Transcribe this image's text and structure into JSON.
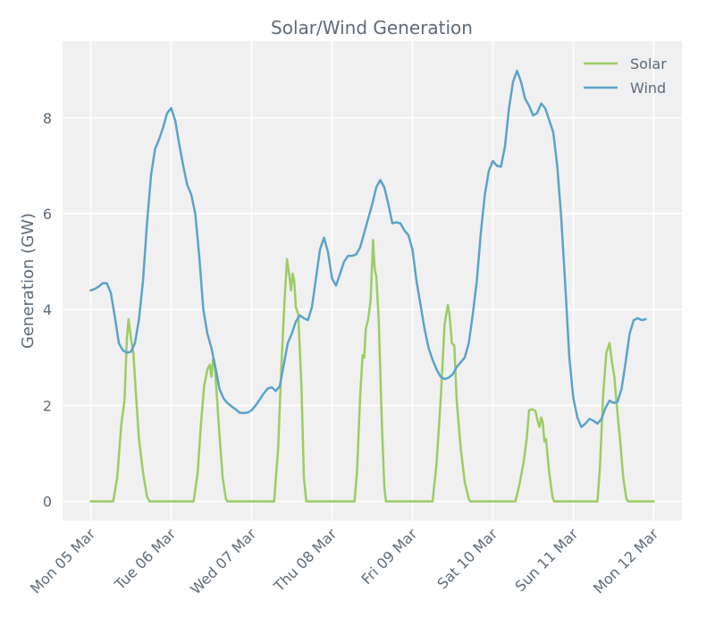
{
  "chart_data": {
    "type": "line",
    "title": "Solar/Wind Generation",
    "xlabel": "",
    "ylabel": "Generation (GW)",
    "ylim": [
      -0.4,
      9.6
    ],
    "xlim": [
      -0.35,
      7.35
    ],
    "yticks": [
      0,
      2,
      4,
      6,
      8
    ],
    "xticks": [
      {
        "pos": 0,
        "label": "Mon 05 Mar"
      },
      {
        "pos": 1,
        "label": "Tue 06 Mar"
      },
      {
        "pos": 2,
        "label": "Wed 07 Mar"
      },
      {
        "pos": 3,
        "label": "Thu 08 Mar"
      },
      {
        "pos": 4,
        "label": "Fri 09 Mar"
      },
      {
        "pos": 5,
        "label": "Sat 10 Mar"
      },
      {
        "pos": 6,
        "label": "Sun 11 Mar"
      },
      {
        "pos": 7,
        "label": "Mon 12 Mar"
      }
    ],
    "grid": true,
    "legend_position": "top-right",
    "series": [
      {
        "name": "Solar",
        "color": "#9ccc65",
        "points": [
          [
            0.0,
            0
          ],
          [
            0.28,
            0
          ],
          [
            0.33,
            0.5
          ],
          [
            0.38,
            1.6
          ],
          [
            0.42,
            2.1
          ],
          [
            0.45,
            3.4
          ],
          [
            0.47,
            3.8
          ],
          [
            0.5,
            3.4
          ],
          [
            0.53,
            3.1
          ],
          [
            0.56,
            2.3
          ],
          [
            0.6,
            1.3
          ],
          [
            0.65,
            0.6
          ],
          [
            0.7,
            0.1
          ],
          [
            0.73,
            0
          ],
          [
            1.28,
            0
          ],
          [
            1.33,
            0.6
          ],
          [
            1.37,
            1.6
          ],
          [
            1.41,
            2.4
          ],
          [
            1.45,
            2.75
          ],
          [
            1.48,
            2.85
          ],
          [
            1.5,
            2.6
          ],
          [
            1.52,
            2.95
          ],
          [
            1.54,
            2.85
          ],
          [
            1.56,
            2.4
          ],
          [
            1.6,
            1.4
          ],
          [
            1.64,
            0.5
          ],
          [
            1.68,
            0.05
          ],
          [
            1.7,
            0
          ],
          [
            2.28,
            0
          ],
          [
            2.33,
            1.1
          ],
          [
            2.37,
            2.8
          ],
          [
            2.41,
            4.2
          ],
          [
            2.44,
            5.05
          ],
          [
            2.47,
            4.7
          ],
          [
            2.49,
            4.4
          ],
          [
            2.51,
            4.75
          ],
          [
            2.53,
            4.6
          ],
          [
            2.55,
            4.05
          ],
          [
            2.58,
            3.9
          ],
          [
            2.62,
            2.4
          ],
          [
            2.65,
            0.5
          ],
          [
            2.68,
            0
          ],
          [
            3.28,
            0
          ],
          [
            3.31,
            0.6
          ],
          [
            3.35,
            2.2
          ],
          [
            3.38,
            3.05
          ],
          [
            3.4,
            3.0
          ],
          [
            3.42,
            3.6
          ],
          [
            3.45,
            3.8
          ],
          [
            3.48,
            4.2
          ],
          [
            3.51,
            5.45
          ],
          [
            3.53,
            4.85
          ],
          [
            3.55,
            4.7
          ],
          [
            3.58,
            3.8
          ],
          [
            3.62,
            1.6
          ],
          [
            3.65,
            0.3
          ],
          [
            3.67,
            0
          ],
          [
            4.25,
            0
          ],
          [
            4.3,
            0.8
          ],
          [
            4.35,
            2.1
          ],
          [
            4.4,
            3.7
          ],
          [
            4.44,
            4.1
          ],
          [
            4.46,
            3.9
          ],
          [
            4.49,
            3.3
          ],
          [
            4.52,
            3.25
          ],
          [
            4.55,
            2.1
          ],
          [
            4.6,
            1.1
          ],
          [
            4.65,
            0.4
          ],
          [
            4.7,
            0.05
          ],
          [
            4.72,
            0
          ],
          [
            5.28,
            0
          ],
          [
            5.33,
            0.35
          ],
          [
            5.38,
            0.8
          ],
          [
            5.42,
            1.3
          ],
          [
            5.45,
            1.9
          ],
          [
            5.49,
            1.92
          ],
          [
            5.53,
            1.88
          ],
          [
            5.56,
            1.65
          ],
          [
            5.58,
            1.55
          ],
          [
            5.6,
            1.75
          ],
          [
            5.62,
            1.65
          ],
          [
            5.64,
            1.25
          ],
          [
            5.66,
            1.3
          ],
          [
            5.7,
            0.6
          ],
          [
            5.74,
            0.1
          ],
          [
            5.76,
            0
          ],
          [
            6.3,
            0
          ],
          [
            6.33,
            0.7
          ],
          [
            6.37,
            2.2
          ],
          [
            6.41,
            3.1
          ],
          [
            6.45,
            3.3
          ],
          [
            6.48,
            2.9
          ],
          [
            6.51,
            2.6
          ],
          [
            6.54,
            2.0
          ],
          [
            6.58,
            1.3
          ],
          [
            6.62,
            0.5
          ],
          [
            6.66,
            0.05
          ],
          [
            6.68,
            0
          ],
          [
            7.0,
            0
          ]
        ]
      },
      {
        "name": "Wind",
        "color": "#5ba3c9",
        "points": [
          [
            0.0,
            4.4
          ],
          [
            0.05,
            4.43
          ],
          [
            0.1,
            4.48
          ],
          [
            0.15,
            4.55
          ],
          [
            0.2,
            4.55
          ],
          [
            0.25,
            4.35
          ],
          [
            0.3,
            3.85
          ],
          [
            0.35,
            3.3
          ],
          [
            0.4,
            3.15
          ],
          [
            0.45,
            3.1
          ],
          [
            0.5,
            3.12
          ],
          [
            0.55,
            3.3
          ],
          [
            0.6,
            3.8
          ],
          [
            0.65,
            4.6
          ],
          [
            0.7,
            5.8
          ],
          [
            0.75,
            6.8
          ],
          [
            0.8,
            7.35
          ],
          [
            0.85,
            7.55
          ],
          [
            0.9,
            7.8
          ],
          [
            0.95,
            8.1
          ],
          [
            1.0,
            8.2
          ],
          [
            1.05,
            7.95
          ],
          [
            1.1,
            7.45
          ],
          [
            1.15,
            7.0
          ],
          [
            1.2,
            6.6
          ],
          [
            1.25,
            6.4
          ],
          [
            1.3,
            6.0
          ],
          [
            1.35,
            5.1
          ],
          [
            1.4,
            4.0
          ],
          [
            1.45,
            3.5
          ],
          [
            1.5,
            3.2
          ],
          [
            1.55,
            2.8
          ],
          [
            1.6,
            2.35
          ],
          [
            1.65,
            2.15
          ],
          [
            1.7,
            2.05
          ],
          [
            1.75,
            1.98
          ],
          [
            1.8,
            1.92
          ],
          [
            1.85,
            1.85
          ],
          [
            1.9,
            1.84
          ],
          [
            1.95,
            1.85
          ],
          [
            2.0,
            1.9
          ],
          [
            2.05,
            2.0
          ],
          [
            2.1,
            2.12
          ],
          [
            2.15,
            2.25
          ],
          [
            2.2,
            2.35
          ],
          [
            2.25,
            2.38
          ],
          [
            2.3,
            2.3
          ],
          [
            2.35,
            2.4
          ],
          [
            2.4,
            2.85
          ],
          [
            2.45,
            3.3
          ],
          [
            2.5,
            3.5
          ],
          [
            2.55,
            3.75
          ],
          [
            2.6,
            3.88
          ],
          [
            2.65,
            3.82
          ],
          [
            2.7,
            3.78
          ],
          [
            2.75,
            4.05
          ],
          [
            2.8,
            4.65
          ],
          [
            2.85,
            5.25
          ],
          [
            2.9,
            5.5
          ],
          [
            2.95,
            5.2
          ],
          [
            3.0,
            4.65
          ],
          [
            3.05,
            4.5
          ],
          [
            3.1,
            4.75
          ],
          [
            3.15,
            5.0
          ],
          [
            3.2,
            5.12
          ],
          [
            3.25,
            5.12
          ],
          [
            3.3,
            5.15
          ],
          [
            3.35,
            5.3
          ],
          [
            3.4,
            5.6
          ],
          [
            3.45,
            5.9
          ],
          [
            3.5,
            6.2
          ],
          [
            3.55,
            6.55
          ],
          [
            3.6,
            6.7
          ],
          [
            3.65,
            6.55
          ],
          [
            3.7,
            6.2
          ],
          [
            3.75,
            5.8
          ],
          [
            3.8,
            5.82
          ],
          [
            3.85,
            5.8
          ],
          [
            3.9,
            5.65
          ],
          [
            3.95,
            5.55
          ],
          [
            4.0,
            5.25
          ],
          [
            4.05,
            4.6
          ],
          [
            4.1,
            4.1
          ],
          [
            4.15,
            3.6
          ],
          [
            4.2,
            3.2
          ],
          [
            4.25,
            2.95
          ],
          [
            4.3,
            2.75
          ],
          [
            4.35,
            2.6
          ],
          [
            4.4,
            2.55
          ],
          [
            4.45,
            2.58
          ],
          [
            4.5,
            2.65
          ],
          [
            4.55,
            2.8
          ],
          [
            4.6,
            2.9
          ],
          [
            4.65,
            3.0
          ],
          [
            4.7,
            3.3
          ],
          [
            4.75,
            3.9
          ],
          [
            4.8,
            4.6
          ],
          [
            4.85,
            5.6
          ],
          [
            4.9,
            6.4
          ],
          [
            4.95,
            6.9
          ],
          [
            5.0,
            7.1
          ],
          [
            5.05,
            7.0
          ],
          [
            5.1,
            6.98
          ],
          [
            5.15,
            7.4
          ],
          [
            5.2,
            8.2
          ],
          [
            5.25,
            8.75
          ],
          [
            5.3,
            8.98
          ],
          [
            5.35,
            8.75
          ],
          [
            5.4,
            8.4
          ],
          [
            5.45,
            8.25
          ],
          [
            5.5,
            8.05
          ],
          [
            5.55,
            8.1
          ],
          [
            5.6,
            8.3
          ],
          [
            5.65,
            8.2
          ],
          [
            5.7,
            7.95
          ],
          [
            5.75,
            7.7
          ],
          [
            5.8,
            7.0
          ],
          [
            5.85,
            5.9
          ],
          [
            5.9,
            4.5
          ],
          [
            5.95,
            3.0
          ],
          [
            6.0,
            2.15
          ],
          [
            6.05,
            1.75
          ],
          [
            6.1,
            1.55
          ],
          [
            6.15,
            1.62
          ],
          [
            6.2,
            1.72
          ],
          [
            6.25,
            1.68
          ],
          [
            6.3,
            1.62
          ],
          [
            6.35,
            1.72
          ],
          [
            6.4,
            1.95
          ],
          [
            6.45,
            2.1
          ],
          [
            6.5,
            2.05
          ],
          [
            6.55,
            2.08
          ],
          [
            6.6,
            2.35
          ],
          [
            6.65,
            2.9
          ],
          [
            6.7,
            3.5
          ],
          [
            6.75,
            3.78
          ],
          [
            6.8,
            3.82
          ],
          [
            6.85,
            3.78
          ],
          [
            6.9,
            3.8
          ]
        ]
      }
    ]
  }
}
